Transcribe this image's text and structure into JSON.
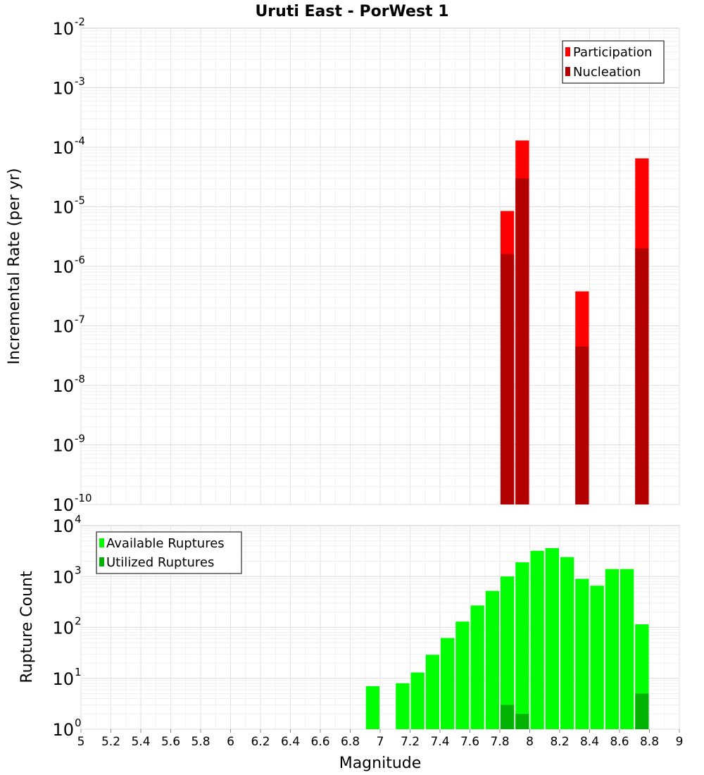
{
  "title": "Uruti East - PorWest 1",
  "chart_data": [
    {
      "type": "bar",
      "panel": "top",
      "title": "Uruti East - PorWest 1",
      "xlabel": "Magnitude",
      "ylabel": "Incremental Rate (per yr)",
      "yscale": "log",
      "xlim": [
        5,
        9
      ],
      "ylim_exp": [
        -10,
        -2
      ],
      "ylim": [
        1e-10,
        0.01
      ],
      "legend": "top-right",
      "series": [
        {
          "name": "Participation",
          "color": "#ff0000",
          "x": [
            7.85,
            7.95,
            8.35,
            8.75
          ],
          "values": [
            8.5e-06,
            0.00013,
            3.8e-07,
            6.5e-05
          ]
        },
        {
          "name": "Nucleation",
          "color": "#b30000",
          "x": [
            7.85,
            7.95,
            8.35,
            8.75
          ],
          "values": [
            1.6e-06,
            3e-05,
            4.5e-08,
            2e-06
          ]
        }
      ]
    },
    {
      "type": "bar",
      "panel": "bottom",
      "xlabel": "Magnitude",
      "ylabel": "Rupture Count",
      "yscale": "log",
      "xlim": [
        5,
        9
      ],
      "ylim_exp": [
        0,
        4
      ],
      "ylim": [
        1,
        10000
      ],
      "legend": "top-left",
      "series": [
        {
          "name": "Available Ruptures",
          "color": "#00ff00",
          "x": [
            6.95,
            7.05,
            7.15,
            7.25,
            7.35,
            7.45,
            7.55,
            7.65,
            7.75,
            7.85,
            7.95,
            8.05,
            8.15,
            8.25,
            8.35,
            8.45,
            8.55,
            8.65,
            8.75
          ],
          "values": [
            7,
            1,
            8,
            13,
            29,
            62,
            130,
            270,
            520,
            1000,
            1900,
            3200,
            3600,
            2400,
            900,
            660,
            1400,
            1400,
            115
          ]
        },
        {
          "name": "Utilized Ruptures",
          "color": "#00b300",
          "x": [
            7.85,
            7.95,
            8.35,
            8.75
          ],
          "values": [
            3,
            2,
            1,
            5
          ]
        }
      ]
    }
  ]
}
